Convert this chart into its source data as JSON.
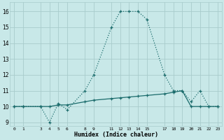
{
  "xlabel": "Humidex (Indice chaleur)",
  "bg_color": "#c8e8e8",
  "grid_color": "#a8cccc",
  "line_color": "#1a6b6b",
  "line1_x": [
    0,
    1,
    3,
    4,
    5,
    6,
    8,
    9,
    11,
    12,
    13,
    14,
    15,
    17,
    18,
    19,
    20,
    21,
    22,
    23
  ],
  "line1_y": [
    10,
    10,
    10,
    9,
    10.2,
    9.8,
    11,
    12,
    15,
    16,
    16,
    16,
    15.5,
    12,
    11,
    11,
    10.3,
    11,
    10,
    10
  ],
  "line2_x": [
    0,
    1,
    3,
    4,
    5,
    6,
    8,
    9,
    11,
    12,
    13,
    14,
    15,
    17,
    18,
    19,
    20,
    21,
    22,
    23
  ],
  "line2_y": [
    10,
    10,
    10,
    10,
    10.1,
    10.1,
    10.3,
    10.4,
    10.5,
    10.55,
    10.6,
    10.65,
    10.7,
    10.8,
    10.9,
    11.0,
    10.0,
    10.0,
    10.0,
    10.0
  ],
  "ylim": [
    8.75,
    16.6
  ],
  "ytick_labels": [
    "9",
    "10",
    "11",
    "12",
    "13",
    "14",
    "15",
    "16"
  ],
  "ytick_vals": [
    9,
    10,
    11,
    12,
    13,
    14,
    15,
    16
  ],
  "xtick_all": [
    0,
    1,
    2,
    3,
    4,
    5,
    6,
    7,
    8,
    9,
    10,
    11,
    12,
    13,
    14,
    15,
    16,
    17,
    18,
    19,
    20,
    21,
    22,
    23
  ],
  "xtick_labeled": [
    0,
    1,
    3,
    4,
    5,
    6,
    8,
    9,
    11,
    12,
    13,
    14,
    15,
    17,
    18,
    19,
    20,
    21,
    22,
    23
  ],
  "xlim": [
    -0.5,
    23.5
  ]
}
